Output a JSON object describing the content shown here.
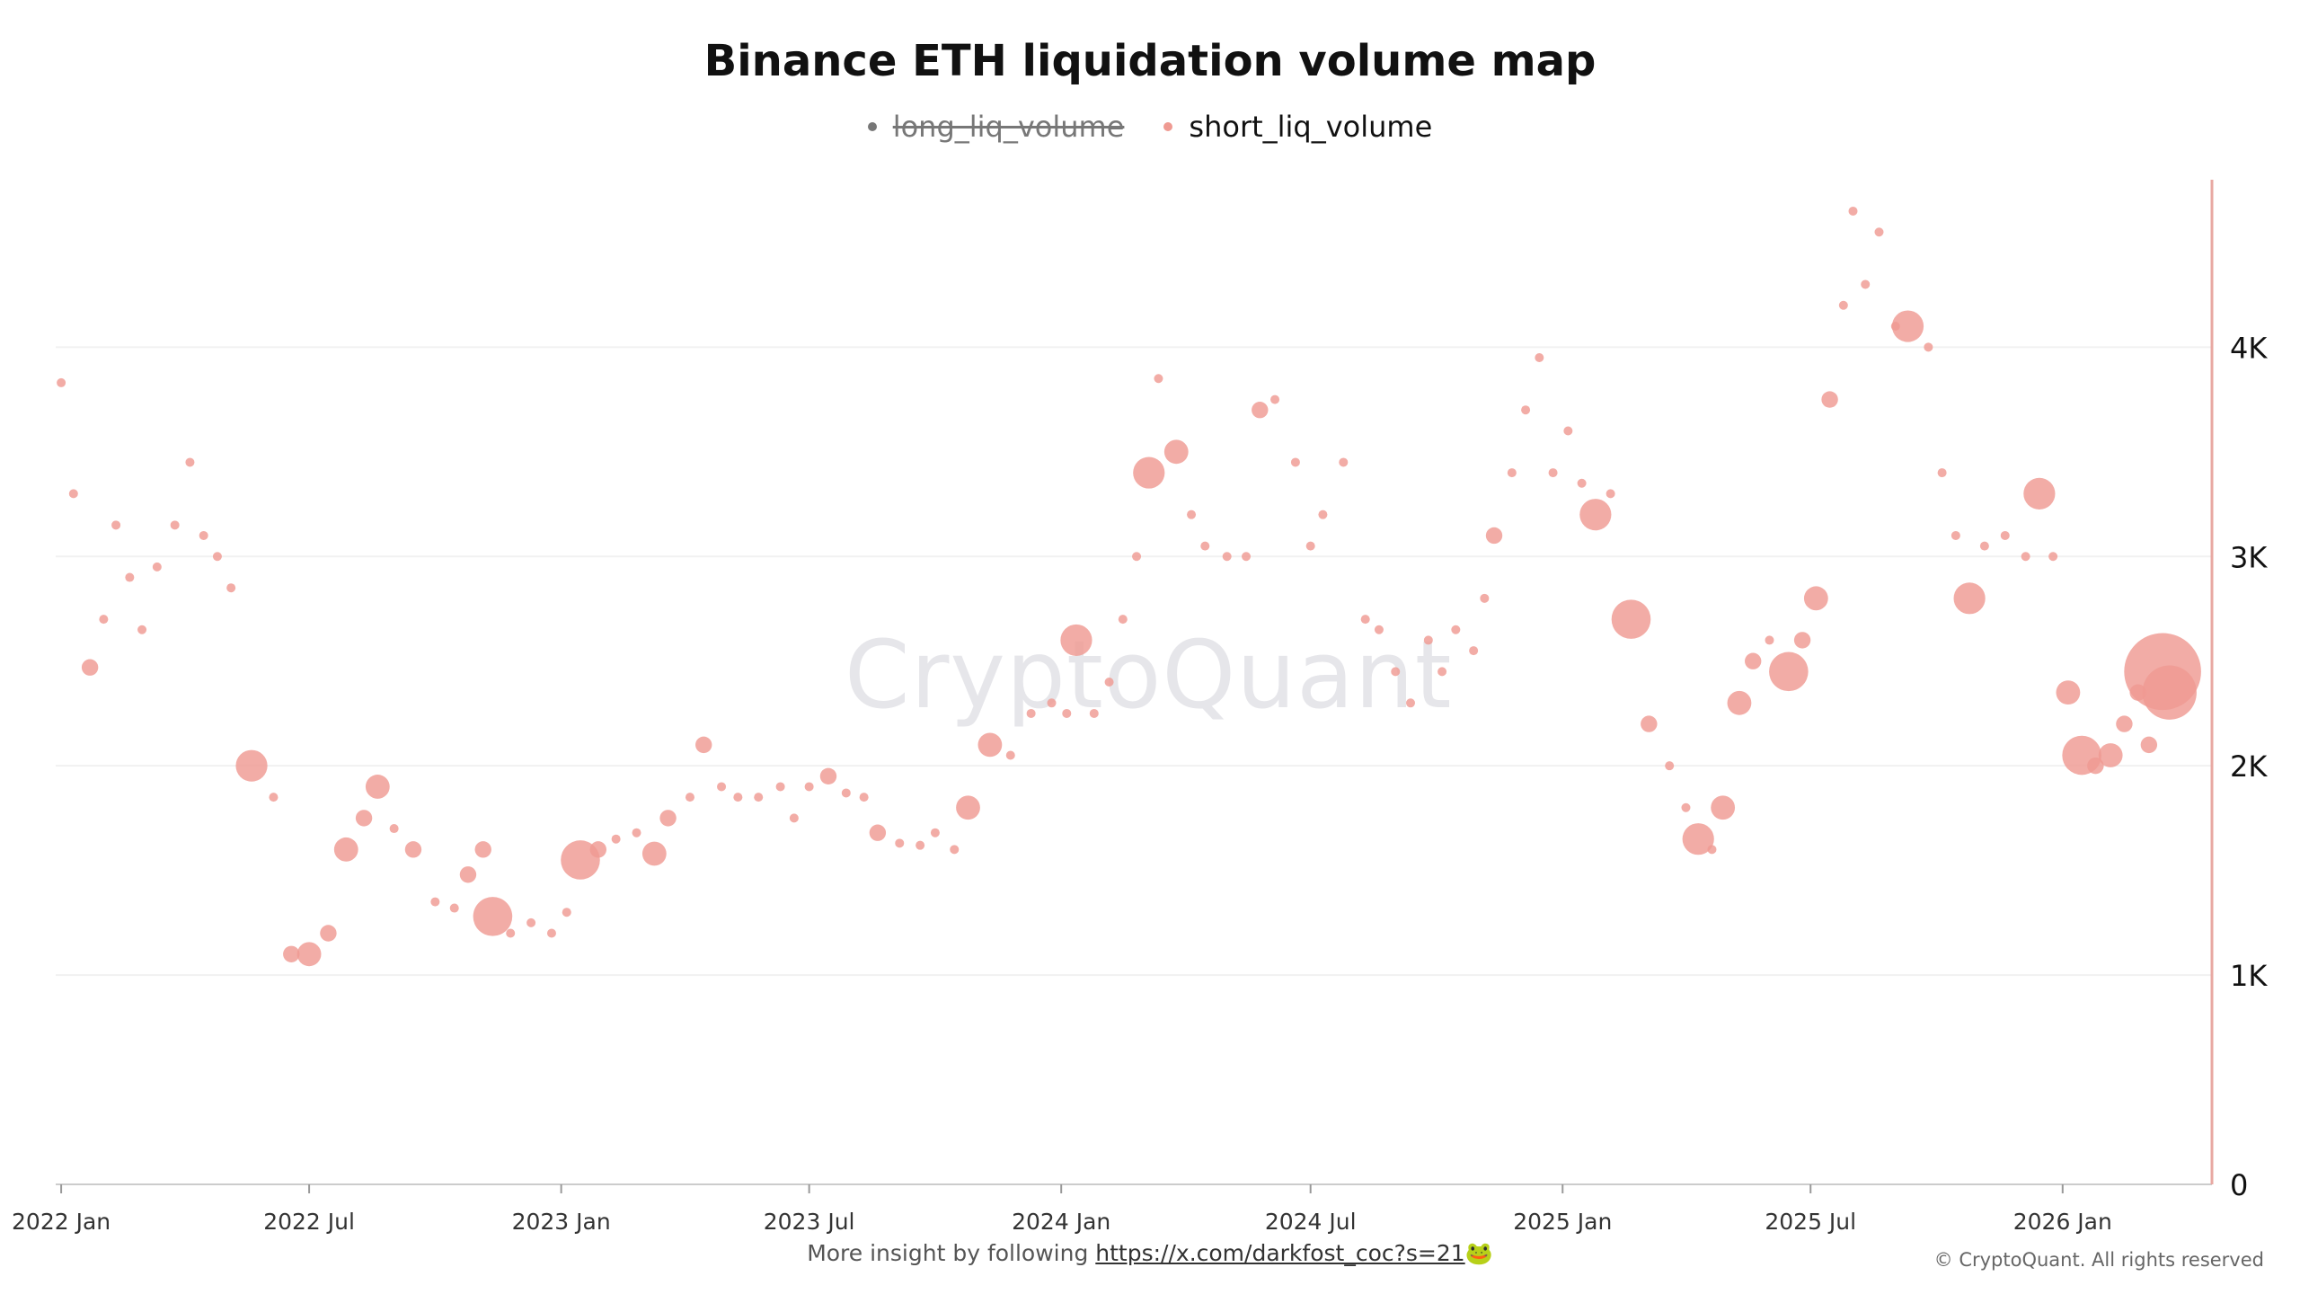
{
  "chart_data": {
    "type": "scatter",
    "title": "Binance ETH liquidation volume map",
    "legend": [
      {
        "name": "long_liq_volume",
        "color": "#777777",
        "hidden": true
      },
      {
        "name": "short_liq_volume",
        "color": "#ef9a92",
        "hidden": false
      }
    ],
    "legend_position": "top-center",
    "xaxis": {
      "type": "date",
      "ticks": [
        "2022 Jan",
        "2022 Jul",
        "2023 Jan",
        "2023 Jul",
        "2024 Jan",
        "2024 Jul",
        "2025 Jan",
        "2025 Jul",
        "2026 Jan"
      ]
    },
    "yaxis": {
      "position": "right",
      "ylim": [
        0,
        4800
      ],
      "ticks": [
        0,
        1000,
        2000,
        3000,
        4000
      ],
      "tick_labels": [
        "0",
        "1K",
        "2K",
        "3K",
        "4K"
      ]
    },
    "grid": true,
    "point_color": "#ef9a92",
    "series": [
      {
        "name": "short_liq_volume",
        "points": [
          [
            "2022-01-01",
            3830,
            1
          ],
          [
            "2022-01-10",
            3300,
            1
          ],
          [
            "2022-01-22",
            2470,
            2
          ],
          [
            "2022-02-01",
            2700,
            1
          ],
          [
            "2022-02-10",
            3150,
            1
          ],
          [
            "2022-02-20",
            2900,
            1
          ],
          [
            "2022-03-01",
            2650,
            1
          ],
          [
            "2022-03-12",
            2950,
            1
          ],
          [
            "2022-03-25",
            3150,
            1
          ],
          [
            "2022-04-05",
            3450,
            1
          ],
          [
            "2022-04-15",
            3100,
            1
          ],
          [
            "2022-04-25",
            3000,
            1
          ],
          [
            "2022-05-05",
            2850,
            1
          ],
          [
            "2022-05-20",
            2000,
            4
          ],
          [
            "2022-06-05",
            1850,
            1
          ],
          [
            "2022-06-18",
            1100,
            2
          ],
          [
            "2022-07-01",
            1100,
            3
          ],
          [
            "2022-07-15",
            1200,
            2
          ],
          [
            "2022-07-28",
            1600,
            3
          ],
          [
            "2022-08-10",
            1750,
            2
          ],
          [
            "2022-08-20",
            1900,
            3
          ],
          [
            "2022-09-01",
            1700,
            1
          ],
          [
            "2022-09-15",
            1600,
            2
          ],
          [
            "2022-10-01",
            1350,
            1
          ],
          [
            "2022-10-15",
            1320,
            1
          ],
          [
            "2022-10-25",
            1480,
            2
          ],
          [
            "2022-11-05",
            1600,
            2
          ],
          [
            "2022-11-12",
            1280,
            5
          ],
          [
            "2022-11-25",
            1200,
            1
          ],
          [
            "2022-12-10",
            1250,
            1
          ],
          [
            "2022-12-25",
            1200,
            1
          ],
          [
            "2023-01-05",
            1300,
            1
          ],
          [
            "2023-01-15",
            1550,
            5
          ],
          [
            "2023-01-28",
            1600,
            2
          ],
          [
            "2023-02-10",
            1650,
            1
          ],
          [
            "2023-02-25",
            1680,
            1
          ],
          [
            "2023-03-10",
            1580,
            3
          ],
          [
            "2023-03-20",
            1750,
            2
          ],
          [
            "2023-04-05",
            1850,
            1
          ],
          [
            "2023-04-15",
            2100,
            2
          ],
          [
            "2023-04-28",
            1900,
            1
          ],
          [
            "2023-05-10",
            1850,
            1
          ],
          [
            "2023-05-25",
            1850,
            1
          ],
          [
            "2023-06-10",
            1900,
            1
          ],
          [
            "2023-06-20",
            1750,
            1
          ],
          [
            "2023-07-01",
            1900,
            1
          ],
          [
            "2023-07-15",
            1950,
            2
          ],
          [
            "2023-07-28",
            1870,
            1
          ],
          [
            "2023-08-10",
            1850,
            1
          ],
          [
            "2023-08-20",
            1680,
            2
          ],
          [
            "2023-09-05",
            1630,
            1
          ],
          [
            "2023-09-20",
            1620,
            1
          ],
          [
            "2023-10-01",
            1680,
            1
          ],
          [
            "2023-10-15",
            1600,
            1
          ],
          [
            "2023-10-25",
            1800,
            3
          ],
          [
            "2023-11-10",
            2100,
            3
          ],
          [
            "2023-11-25",
            2050,
            1
          ],
          [
            "2023-12-10",
            2250,
            1
          ],
          [
            "2023-12-25",
            2300,
            1
          ],
          [
            "2024-01-05",
            2250,
            1
          ],
          [
            "2024-01-12",
            2600,
            4
          ],
          [
            "2024-01-25",
            2250,
            1
          ],
          [
            "2024-02-05",
            2400,
            1
          ],
          [
            "2024-02-15",
            2700,
            1
          ],
          [
            "2024-02-25",
            3000,
            1
          ],
          [
            "2024-03-05",
            3400,
            4
          ],
          [
            "2024-03-12",
            3850,
            1
          ],
          [
            "2024-03-25",
            3500,
            3
          ],
          [
            "2024-04-05",
            3200,
            1
          ],
          [
            "2024-04-15",
            3050,
            1
          ],
          [
            "2024-05-01",
            3000,
            1
          ],
          [
            "2024-05-15",
            3000,
            1
          ],
          [
            "2024-05-25",
            3700,
            2
          ],
          [
            "2024-06-05",
            3750,
            1
          ],
          [
            "2024-06-20",
            3450,
            1
          ],
          [
            "2024-07-01",
            3050,
            1
          ],
          [
            "2024-07-10",
            3200,
            1
          ],
          [
            "2024-07-25",
            3450,
            1
          ],
          [
            "2024-08-10",
            2700,
            1
          ],
          [
            "2024-08-20",
            2650,
            1
          ],
          [
            "2024-09-01",
            2450,
            1
          ],
          [
            "2024-09-12",
            2300,
            1
          ],
          [
            "2024-09-25",
            2600,
            1
          ],
          [
            "2024-10-05",
            2450,
            1
          ],
          [
            "2024-10-15",
            2650,
            1
          ],
          [
            "2024-10-28",
            2550,
            1
          ],
          [
            "2024-11-05",
            2800,
            1
          ],
          [
            "2024-11-12",
            3100,
            2
          ],
          [
            "2024-11-25",
            3400,
            1
          ],
          [
            "2024-12-05",
            3700,
            1
          ],
          [
            "2024-12-15",
            3950,
            1
          ],
          [
            "2024-12-25",
            3400,
            1
          ],
          [
            "2025-01-05",
            3600,
            1
          ],
          [
            "2025-01-15",
            3350,
            1
          ],
          [
            "2025-01-25",
            3200,
            4
          ],
          [
            "2025-02-05",
            3300,
            1
          ],
          [
            "2025-02-20",
            2700,
            5
          ],
          [
            "2025-03-05",
            2200,
            2
          ],
          [
            "2025-03-20",
            2000,
            1
          ],
          [
            "2025-04-01",
            1800,
            1
          ],
          [
            "2025-04-10",
            1650,
            4
          ],
          [
            "2025-04-20",
            1600,
            1
          ],
          [
            "2025-04-28",
            1800,
            3
          ],
          [
            "2025-05-10",
            2300,
            3
          ],
          [
            "2025-05-20",
            2500,
            2
          ],
          [
            "2025-06-01",
            2600,
            1
          ],
          [
            "2025-06-15",
            2450,
            5
          ],
          [
            "2025-06-25",
            2600,
            2
          ],
          [
            "2025-07-05",
            2800,
            3
          ],
          [
            "2025-07-15",
            3750,
            2
          ],
          [
            "2025-07-25",
            4200,
            1
          ],
          [
            "2025-08-01",
            4650,
            1
          ],
          [
            "2025-08-10",
            4300,
            1
          ],
          [
            "2025-08-20",
            4550,
            1
          ],
          [
            "2025-09-01",
            4100,
            1
          ],
          [
            "2025-09-10",
            4100,
            4
          ],
          [
            "2025-09-25",
            4000,
            1
          ],
          [
            "2025-10-05",
            3400,
            1
          ],
          [
            "2025-10-15",
            3100,
            1
          ],
          [
            "2025-10-25",
            2800,
            4
          ],
          [
            "2025-11-05",
            3050,
            1
          ],
          [
            "2025-11-20",
            3100,
            1
          ],
          [
            "2025-12-05",
            3000,
            1
          ],
          [
            "2025-12-15",
            3300,
            4
          ],
          [
            "2025-12-25",
            3000,
            1
          ],
          [
            "2026-01-05",
            2350,
            3
          ],
          [
            "2026-01-15",
            2050,
            5
          ],
          [
            "2026-01-25",
            2000,
            2
          ],
          [
            "2026-02-05",
            2050,
            3
          ],
          [
            "2026-02-15",
            2200,
            2
          ],
          [
            "2026-02-25",
            2350,
            2
          ],
          [
            "2026-03-05",
            2100,
            2
          ],
          [
            "2026-03-15",
            2450,
            10
          ],
          [
            "2026-03-20",
            2350,
            7
          ]
        ]
      }
    ]
  },
  "watermark": "CryptoQuant",
  "footer": {
    "prefix": "More insight by following ",
    "link_text": "https://x.com/darkfost_coc?s=21",
    "emoji": "🐸"
  },
  "copyright": "© CryptoQuant. All rights reserved"
}
